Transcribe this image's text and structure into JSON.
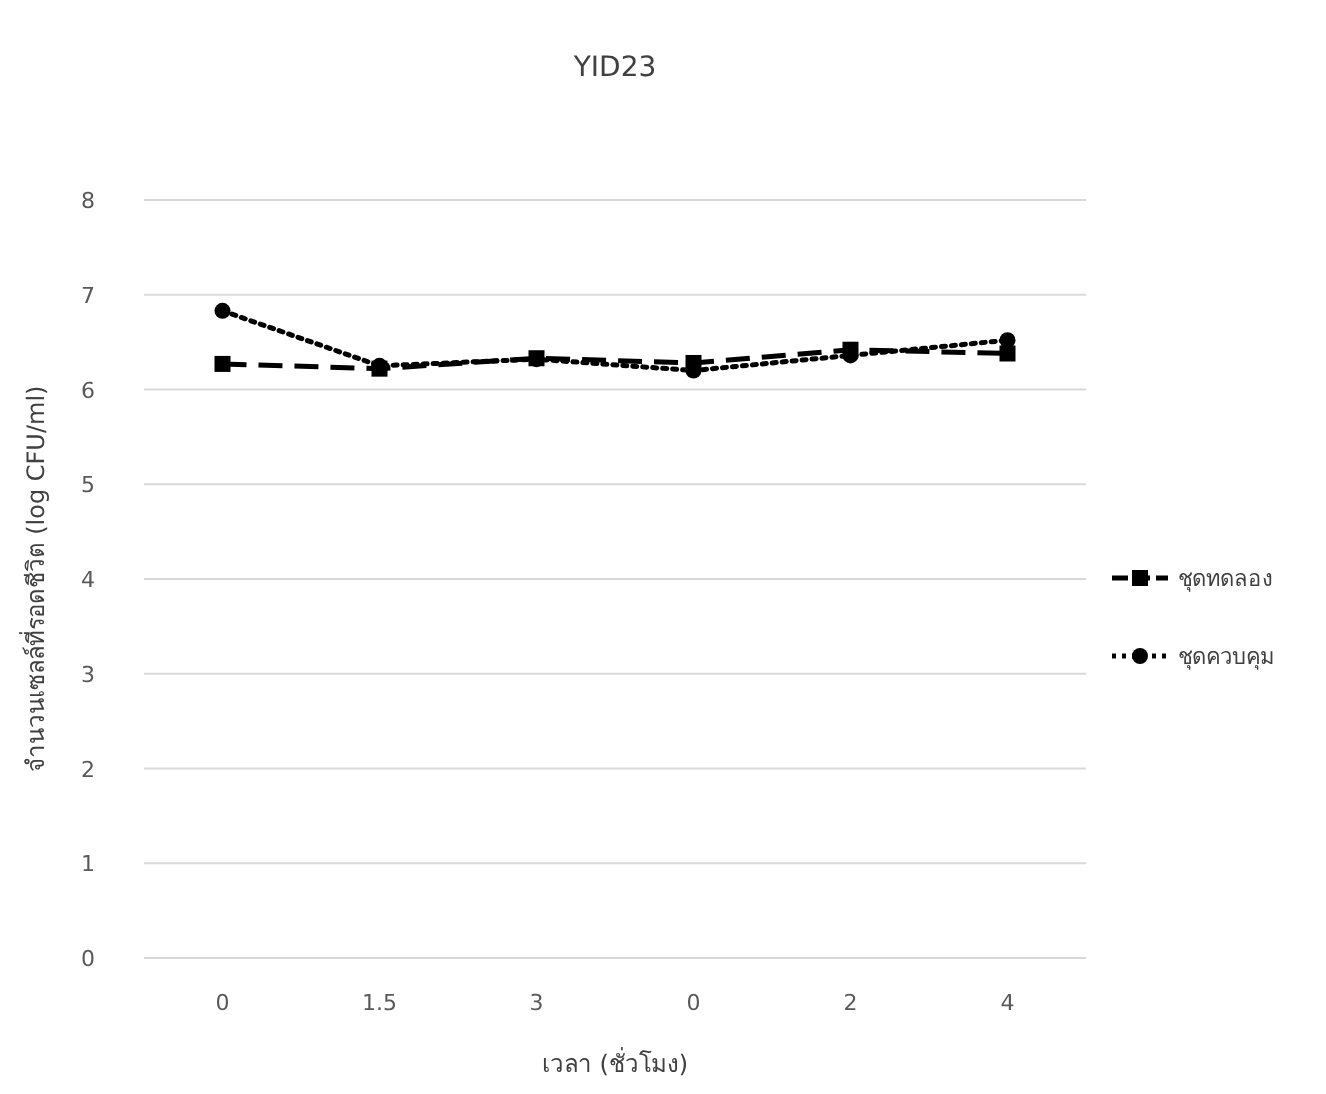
{
  "chart_data": {
    "type": "line",
    "title": "YID23",
    "xlabel": "เวลา (ชั่วโมง)",
    "ylabel": "จำนวนเซลล์ที่รอดชีวิต (log CFU/ml)",
    "categories": [
      "0",
      "1.5",
      "3",
      "0",
      "2",
      "4"
    ],
    "ylim": [
      0,
      8
    ],
    "yticks": [
      0,
      1,
      2,
      3,
      4,
      5,
      6,
      7,
      8
    ],
    "grid": "y",
    "legend": "right",
    "series": [
      {
        "name": "ชุดทดลอง",
        "color": "#000000",
        "marker": "square",
        "line_style": "dashed",
        "values": [
          6.27,
          6.22,
          6.33,
          6.28,
          6.42,
          6.38
        ]
      },
      {
        "name": "ชุดควบคุม",
        "color": "#000000",
        "marker": "circle",
        "line_style": "dotted",
        "values": [
          6.83,
          6.25,
          6.32,
          6.2,
          6.36,
          6.52
        ]
      }
    ]
  }
}
